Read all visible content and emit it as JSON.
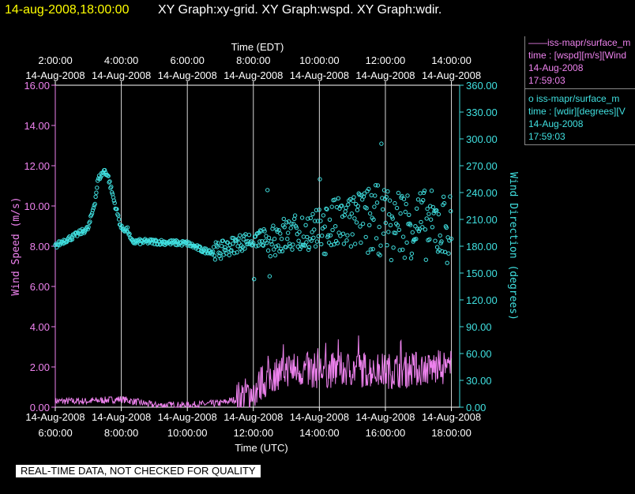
{
  "header": {
    "datetime": "14-aug-2008,18:00:00",
    "graphs": "XY Graph:xy-grid.  XY Graph:wspd.  XY Graph:wdir."
  },
  "quality_note": "REAL-TIME DATA, NOT CHECKED FOR QUALITY",
  "legend": {
    "wspd": {
      "line1": "——iss-mapr/surface_m",
      "line2": "time : [wspd][m/s][Wind",
      "line3": "14-Aug-2008",
      "line4": "17:59:03"
    },
    "wdir": {
      "line1": "o  iss-mapr/surface_m",
      "line2": "time : [wdir][degrees][V",
      "line3": "14-Aug-2008",
      "line4": "17:59:03"
    }
  },
  "colors": {
    "wspd": "#ee82ee",
    "wdir": "#40e0e0",
    "header_date": "#ffff00",
    "axis": "#ffffff"
  },
  "chart_data": {
    "type": "line",
    "top_axis_label": "Time (EDT)",
    "xlabel": "Time (UTC)",
    "ylabel": "Wind Speed (m/s)",
    "y2label": "Wind Direction (degrees)",
    "date_label": "14-Aug-2008",
    "x_range_utc_hours": [
      6,
      18.25
    ],
    "top_ticks": [
      "2:00:00",
      "4:00:00",
      "6:00:00",
      "8:00:00",
      "10:00:00",
      "12:00:00",
      "14:00:00"
    ],
    "bottom_ticks": [
      "6:00:00",
      "8:00:00",
      "10:00:00",
      "12:00:00",
      "14:00:00",
      "16:00:00",
      "18:00:00"
    ],
    "ylim": [
      0,
      16
    ],
    "y_ticks": [
      "0.00",
      "2.00",
      "4.00",
      "6.00",
      "8.00",
      "10.00",
      "12.00",
      "14.00",
      "16.00"
    ],
    "y2lim": [
      0,
      360
    ],
    "y2_ticks": [
      "0.00",
      "30.00",
      "60.00",
      "90.00",
      "120.00",
      "150.00",
      "180.00",
      "210.00",
      "240.00",
      "270.00",
      "300.00",
      "330.00",
      "360.00"
    ],
    "grid": "vertical",
    "series": [
      {
        "name": "wspd",
        "style": "line",
        "axis": "left",
        "profile_hours": [
          6,
          7,
          8,
          9,
          10,
          11,
          11.5,
          12,
          12.5,
          13,
          14,
          15,
          16,
          17,
          18
        ],
        "profile_values": [
          0.3,
          0.3,
          0.4,
          0.1,
          0.1,
          0.2,
          0.4,
          0.8,
          1.5,
          1.9,
          1.8,
          1.9,
          1.8,
          1.9,
          2.0
        ]
      },
      {
        "name": "wdir",
        "style": "scatter",
        "axis": "right",
        "profile_hours": [
          6,
          6.2,
          6.5,
          7.0,
          7.2,
          7.3,
          7.5,
          7.6,
          7.8,
          8.0,
          8.2,
          8.3,
          9.0,
          10.0,
          10.5,
          11.0,
          11.5,
          12.0,
          13.0,
          14.0,
          15.0,
          16.0,
          17.0,
          18.0
        ],
        "profile_values": [
          180,
          185,
          190,
          200,
          230,
          255,
          265,
          258,
          228,
          200,
          198,
          185,
          185,
          183,
          175,
          175,
          183,
          188,
          192,
          200,
          205,
          210,
          205,
          200
        ]
      }
    ]
  }
}
